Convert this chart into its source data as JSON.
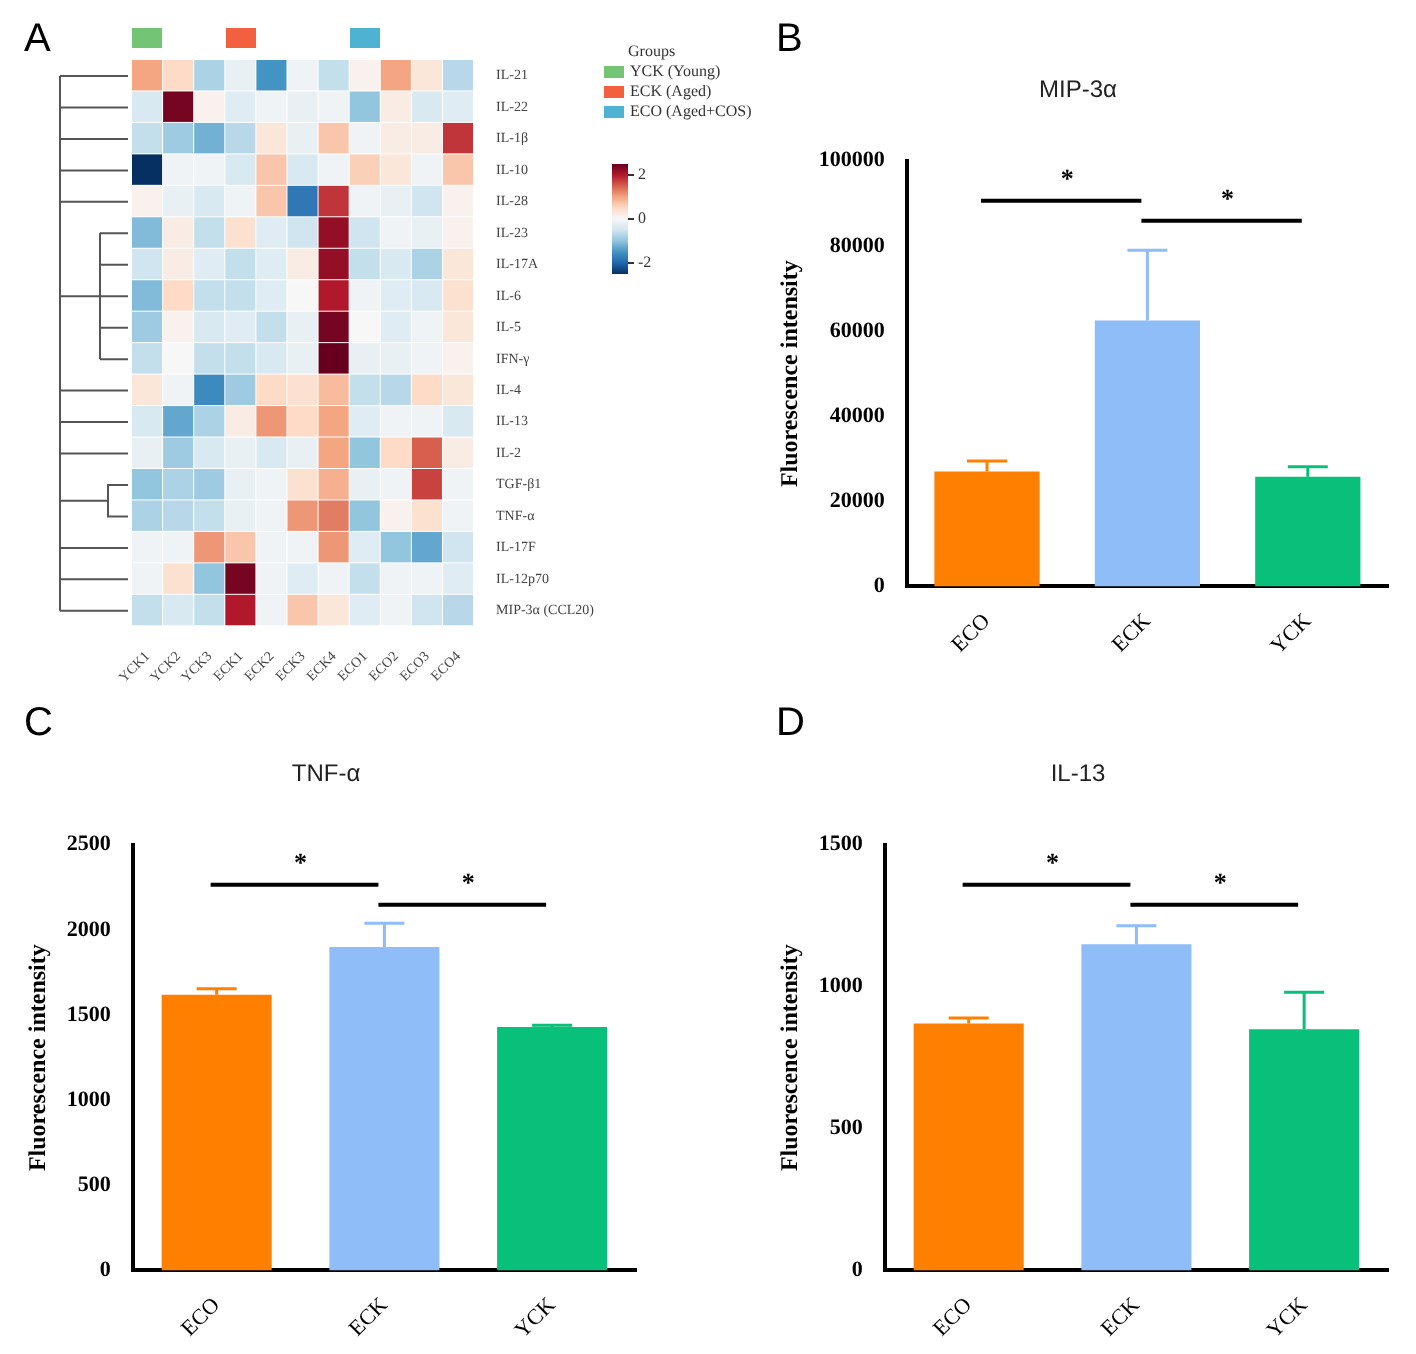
{
  "chart_data": [
    {
      "type": "heatmap",
      "annotations": [
        "A",
        "YCK (Young)",
        "ECK (Aged)",
        "ECO (Aged+COS)"
      ],
      "legend_title": "Groups",
      "categories": [
        "YCK1",
        "YCK2",
        "YCK3",
        "ECK1",
        "ECK2",
        "ECK3",
        "ECK4",
        "ECO1",
        "ECO2",
        "ECO3",
        "ECO4"
      ],
      "y_categories": [
        "IL-21",
        "IL-22",
        "IL-1β",
        "IL-10",
        "IL-28",
        "IL-23",
        "IL-17A",
        "IL-6",
        "IL-5",
        "IFN-γ",
        "IL-4",
        "IL-13",
        "IL-2",
        "TGF-β1",
        "TNF-α",
        "IL-17F",
        "IL-12p70",
        "MIP-3α (CCL20)"
      ],
      "cells": [
        [
          1.0,
          0.5,
          -0.8,
          -0.2,
          -1.5,
          -0.1,
          -0.6,
          0.1,
          1.0,
          0.3,
          -0.7
        ],
        [
          -0.4,
          2.4,
          0.1,
          -0.3,
          -0.1,
          -0.2,
          -0.1,
          -1.0,
          0.2,
          -0.4,
          -0.3
        ],
        [
          -0.6,
          -0.9,
          -1.2,
          -0.7,
          0.3,
          -0.2,
          0.7,
          -0.1,
          0.2,
          0.2,
          1.8
        ],
        [
          -2.5,
          -0.1,
          -0.1,
          -0.4,
          0.7,
          -0.4,
          -0.1,
          0.6,
          0.3,
          -0.1,
          0.7
        ],
        [
          0.1,
          -0.2,
          -0.4,
          -0.1,
          0.7,
          -1.8,
          1.8,
          -0.1,
          -0.2,
          -0.5,
          0.1
        ],
        [
          -1.1,
          0.2,
          -0.6,
          0.4,
          -0.3,
          -0.5,
          2.2,
          -0.5,
          -0.1,
          -0.2,
          0.1
        ],
        [
          -0.5,
          0.2,
          -0.3,
          -0.6,
          -0.3,
          0.2,
          2.2,
          -0.6,
          -0.4,
          -0.8,
          0.3
        ],
        [
          -1.1,
          0.5,
          -0.6,
          -0.6,
          -0.3,
          0.0,
          2.0,
          -0.1,
          -0.3,
          -0.4,
          0.4
        ],
        [
          -0.9,
          0.1,
          -0.4,
          -0.3,
          -0.6,
          -0.2,
          2.4,
          0.0,
          -0.3,
          -0.1,
          0.3
        ],
        [
          -0.6,
          0.0,
          -0.6,
          -0.6,
          -0.4,
          -0.2,
          2.5,
          -0.2,
          -0.2,
          -0.1,
          0.1
        ],
        [
          0.3,
          -0.1,
          -1.6,
          -0.9,
          0.5,
          0.4,
          0.8,
          -0.6,
          -0.7,
          0.5,
          0.3
        ],
        [
          -0.4,
          -1.3,
          -0.8,
          0.2,
          1.1,
          0.5,
          1.0,
          -0.3,
          -0.1,
          -0.1,
          -0.4
        ],
        [
          -0.2,
          -0.9,
          -0.4,
          -0.2,
          -0.4,
          -0.2,
          1.0,
          -1.0,
          0.5,
          1.5,
          0.2
        ],
        [
          -1.0,
          -0.8,
          -0.9,
          -0.2,
          -0.1,
          0.4,
          0.9,
          -0.2,
          -0.1,
          1.7,
          -0.1
        ],
        [
          -0.8,
          -0.7,
          -0.6,
          -0.2,
          -0.1,
          1.1,
          1.3,
          -1.0,
          0.1,
          0.4,
          -0.1
        ],
        [
          -0.1,
          -0.1,
          1.1,
          0.7,
          -0.1,
          -0.1,
          1.1,
          -0.3,
          -1.0,
          -1.3,
          -0.5
        ],
        [
          -0.1,
          0.4,
          -1.0,
          2.4,
          -0.1,
          -0.3,
          -0.1,
          -0.6,
          -0.1,
          -0.1,
          -0.3
        ],
        [
          -0.6,
          -0.4,
          -0.6,
          2.0,
          -0.1,
          0.7,
          0.3,
          -0.3,
          -0.1,
          -0.5,
          -0.7
        ]
      ],
      "clim": [
        -2.5,
        2.5
      ],
      "cticks": [
        -2,
        0,
        2
      ]
    },
    {
      "type": "bar",
      "title": "MIP-3α",
      "ylabel": "Fluorescence intensity",
      "annotations": [
        "B",
        "*",
        "*"
      ],
      "categories": [
        "ECO",
        "ECK",
        "YCK"
      ],
      "values": [
        27000,
        62500,
        25800
      ],
      "colors": [
        "#ff8000",
        "#8fbdf7",
        "#08c07a"
      ],
      "errors": [
        [
          27000,
          29500
        ],
        [
          62500,
          79000
        ],
        [
          25800,
          28100
        ]
      ],
      "ylim": [
        0,
        100000
      ],
      "yticks": [
        0,
        20000,
        40000,
        60000,
        80000,
        100000
      ]
    },
    {
      "type": "bar",
      "title": "TNF-α",
      "ylabel": "Fluorescence intensity",
      "annotations": [
        "C",
        "*",
        "*"
      ],
      "categories": [
        "ECO",
        "ECK",
        "YCK"
      ],
      "values": [
        1620,
        1900,
        1430
      ],
      "colors": [
        "#ff8000",
        "#8fbdf7",
        "#08c07a"
      ],
      "errors": [
        [
          1620,
          1655
        ],
        [
          1900,
          2040
        ],
        [
          1430,
          1440
        ]
      ],
      "ylim": [
        0,
        2500
      ],
      "yticks": [
        0,
        500,
        1000,
        1500,
        2000,
        2500
      ]
    },
    {
      "type": "bar",
      "title": "IL-13",
      "ylabel": "Fluorescence intensity",
      "annotations": [
        "D",
        "*",
        "*"
      ],
      "categories": [
        "ECO",
        "ECK",
        "YCK"
      ],
      "values": [
        870,
        1150,
        850
      ],
      "colors": [
        "#ff8000",
        "#8fbdf7",
        "#08c07a"
      ],
      "errors": [
        [
          870,
          890
        ],
        [
          1150,
          1215
        ],
        [
          850,
          980
        ]
      ],
      "ylim": [
        0,
        1500
      ],
      "yticks": [
        0,
        500,
        1000,
        1500
      ]
    }
  ]
}
